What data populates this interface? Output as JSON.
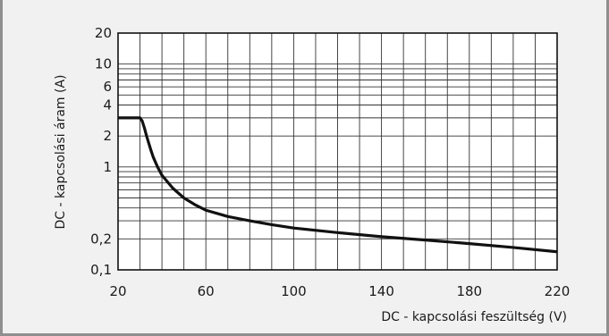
{
  "chart_data": {
    "type": "line",
    "xlabel": "DC - kapcsolási feszültség (V)",
    "ylabel": "DC - kapcsolási áram (A)",
    "xlim": [
      20,
      220
    ],
    "ylim": [
      0.1,
      20
    ],
    "yscale": "log",
    "x_ticks": [
      20,
      60,
      100,
      140,
      180,
      220
    ],
    "y_ticks": [
      {
        "value": 0.1,
        "label": "0,1"
      },
      {
        "value": 0.2,
        "label": "0,2"
      },
      {
        "value": 1,
        "label": "1"
      },
      {
        "value": 2,
        "label": "2"
      },
      {
        "value": 4,
        "label": "4"
      },
      {
        "value": 6,
        "label": "6"
      },
      {
        "value": 10,
        "label": "10"
      },
      {
        "value": 20,
        "label": "20"
      }
    ],
    "grid": true,
    "series": [
      {
        "color": "#111111",
        "points": [
          [
            20,
            3.0
          ],
          [
            30,
            3.0
          ],
          [
            31,
            2.8
          ],
          [
            32,
            2.4
          ],
          [
            33,
            2.0
          ],
          [
            34,
            1.7
          ],
          [
            35,
            1.45
          ],
          [
            36,
            1.25
          ],
          [
            38,
            1.0
          ],
          [
            40,
            0.83
          ],
          [
            45,
            0.62
          ],
          [
            50,
            0.5
          ],
          [
            55,
            0.43
          ],
          [
            60,
            0.38
          ],
          [
            70,
            0.33
          ],
          [
            80,
            0.3
          ],
          [
            90,
            0.275
          ],
          [
            100,
            0.255
          ],
          [
            120,
            0.23
          ],
          [
            140,
            0.21
          ],
          [
            160,
            0.195
          ],
          [
            180,
            0.18
          ],
          [
            200,
            0.165
          ],
          [
            220,
            0.15
          ]
        ]
      }
    ]
  }
}
